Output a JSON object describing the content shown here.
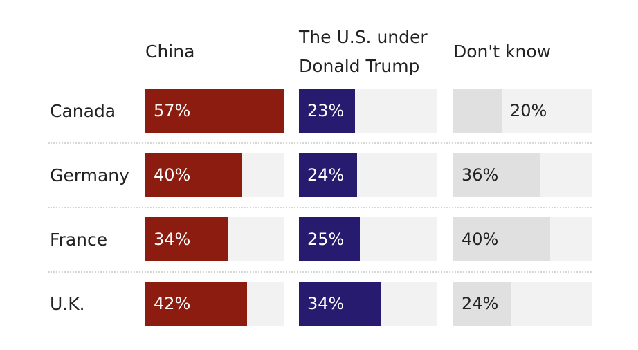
{
  "chart_data": {
    "type": "bar",
    "categories": [
      "Canada",
      "Germany",
      "France",
      "U.K."
    ],
    "series": [
      {
        "name": "China",
        "color": "#8b1c0f",
        "values": [
          57,
          40,
          34,
          42
        ],
        "value_labels": [
          "57%",
          "40%",
          "34%",
          "42%"
        ]
      },
      {
        "name": "The U.S. under Donald Trump",
        "color": "#261b6e",
        "values": [
          23,
          24,
          25,
          34
        ],
        "value_labels": [
          "23%",
          "24%",
          "25%",
          "34%"
        ]
      },
      {
        "name": "Don't know",
        "color": "#e0e0e0",
        "values": [
          20,
          36,
          40,
          24
        ],
        "value_labels": [
          "20%",
          "36%",
          "40%",
          "24%"
        ]
      }
    ]
  }
}
